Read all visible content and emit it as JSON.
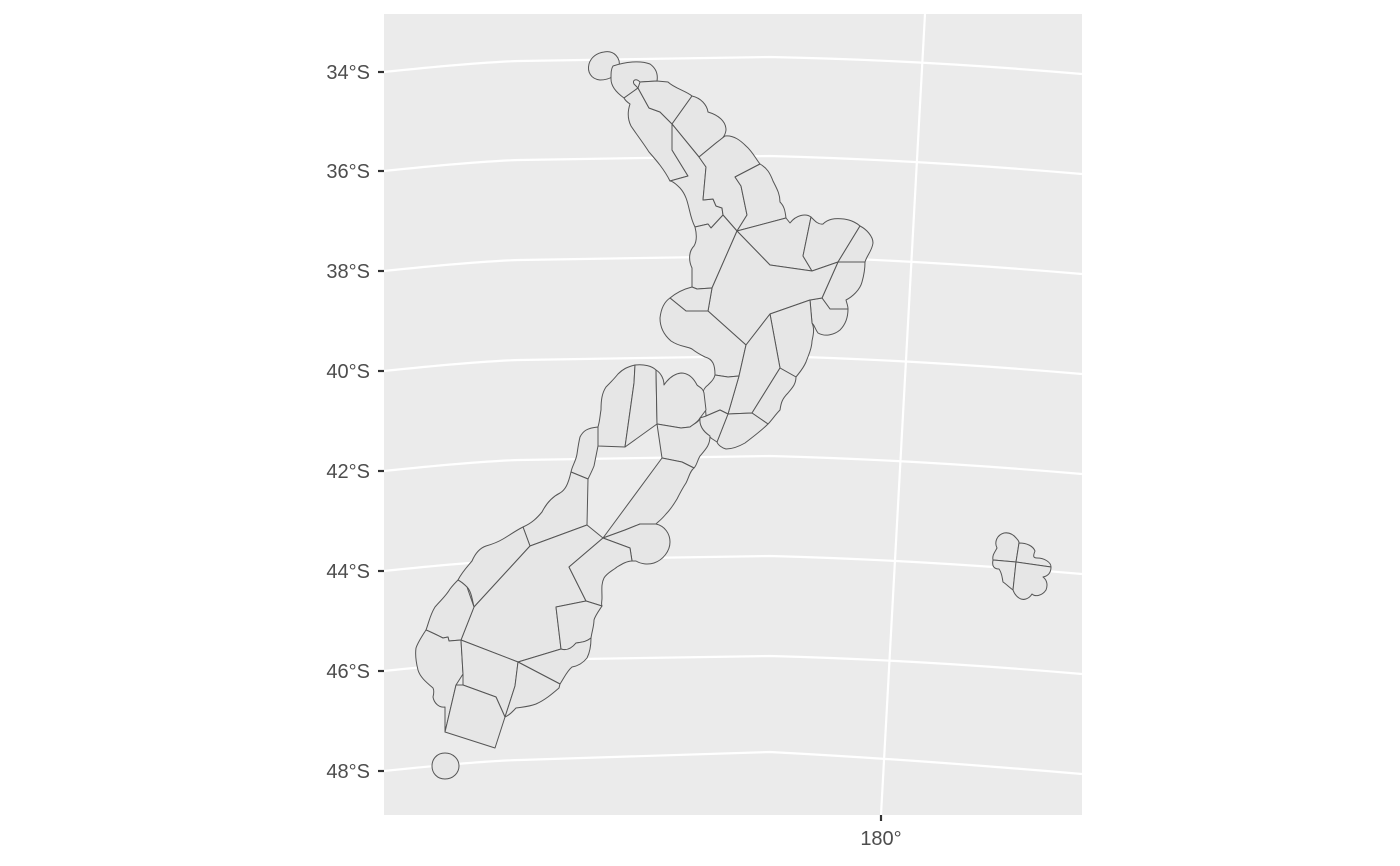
{
  "map": {
    "colors": {
      "panel_background": "#ebebeb",
      "gridline": "#ffffff",
      "region_fill": "#e6e6e6",
      "region_border": "#555555",
      "axis_text": "#4d4d4d",
      "axis_tick": "#333333"
    },
    "y_axis_labels": [
      "34°S",
      "36°S",
      "38°S",
      "40°S",
      "42°S",
      "44°S",
      "46°S",
      "48°S"
    ],
    "x_axis_labels": [
      "180°"
    ]
  }
}
